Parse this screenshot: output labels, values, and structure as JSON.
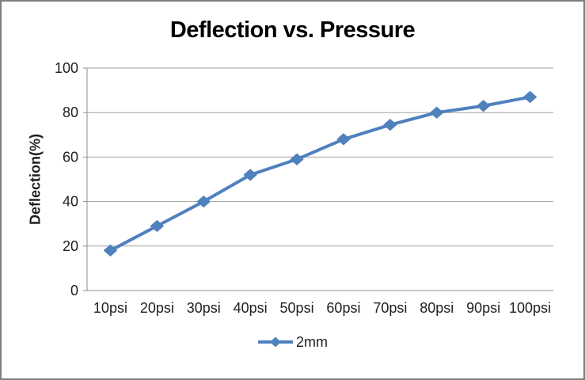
{
  "window": {
    "background": "#FFFFFF",
    "border_color": "#7F7F7F"
  },
  "chart_data": {
    "type": "line",
    "title": "Deflection vs. Pressure",
    "ylabel": "Deflection(%)",
    "xlabel": "",
    "categories": [
      "10psi",
      "20psi",
      "30psi",
      "40psi",
      "50psi",
      "60psi",
      "70psi",
      "80psi",
      "90psi",
      "100psi"
    ],
    "series": [
      {
        "name": "2mm",
        "color": "#4F81BD",
        "marker": "diamond",
        "values": [
          18,
          29,
          40,
          52,
          59,
          68,
          74.5,
          80,
          83,
          87
        ]
      }
    ],
    "ylim": [
      0,
      100
    ],
    "yticks": [
      0,
      20,
      40,
      60,
      80,
      100
    ],
    "grid": "horizontal-major",
    "legend_position": "bottom-center"
  },
  "colors": {
    "series": "#4F81BD",
    "gridline": "#A3A3A3",
    "axis": "#8C8C8C",
    "tick_text": "#1F1F1F",
    "title_text": "#000000"
  }
}
